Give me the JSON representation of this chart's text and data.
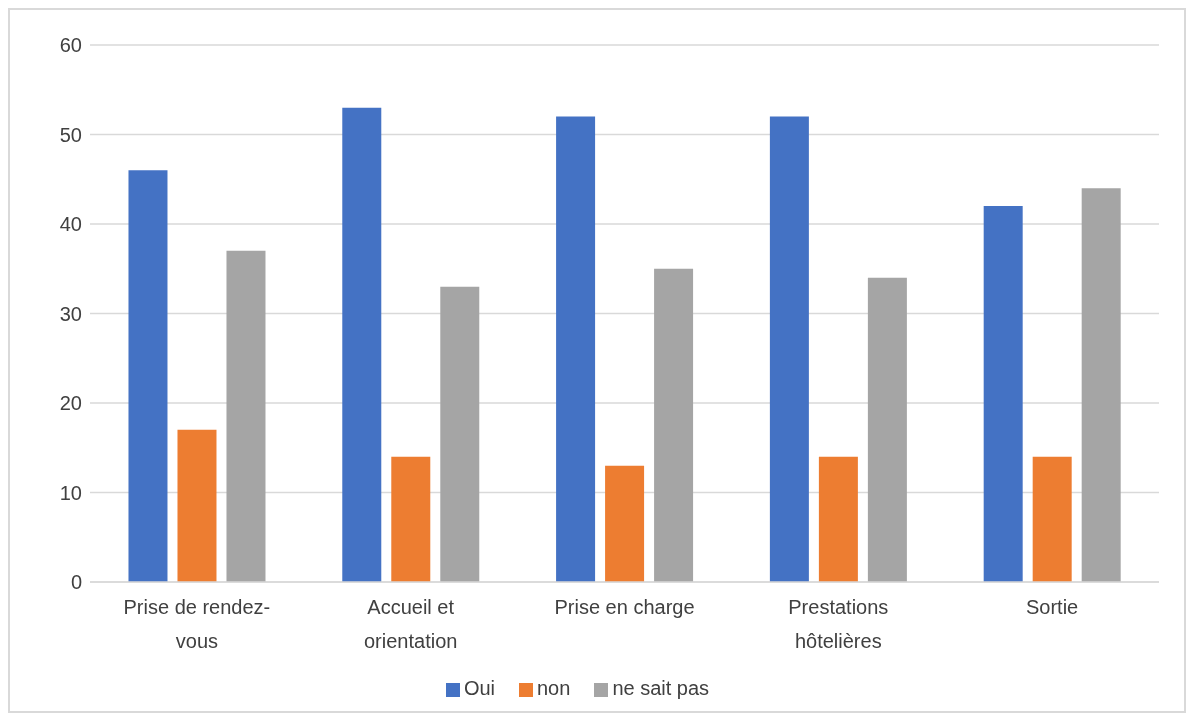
{
  "chart_data": {
    "type": "bar",
    "categories": [
      "Prise de rendez-vous",
      "Accueil et orientation",
      "Prise en charge",
      "Prestations hôtelières",
      "Sortie"
    ],
    "series": [
      {
        "name": "Oui",
        "color": "#4472c4",
        "values": [
          46,
          53,
          52,
          52,
          42
        ]
      },
      {
        "name": "non",
        "color": "#ed7d31",
        "values": [
          17,
          14,
          13,
          14,
          14
        ]
      },
      {
        "name": "ne sait pas",
        "color": "#a5a5a5",
        "values": [
          37,
          33,
          35,
          34,
          44
        ]
      }
    ],
    "ylim": [
      0,
      60
    ],
    "yticks": [
      0,
      10,
      20,
      30,
      40,
      50,
      60
    ],
    "grid": "y",
    "legend": "bottom"
  }
}
